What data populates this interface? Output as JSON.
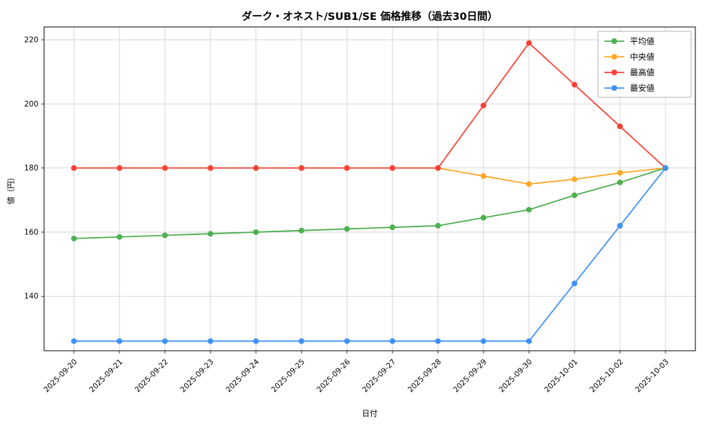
{
  "chart_data": {
    "type": "line",
    "title": "ダーク・オネスト/SUB1/SE 価格推移（過去30日間）",
    "xlabel": "日付",
    "ylabel": "値（円）",
    "x": [
      "2025-09-20",
      "2025-09-21",
      "2025-09-22",
      "2025-09-23",
      "2025-09-24",
      "2025-09-25",
      "2025-09-26",
      "2025-09-27",
      "2025-09-28",
      "2025-09-29",
      "2025-09-30",
      "2025-10-01",
      "2025-10-02",
      "2025-10-03"
    ],
    "ylim": [
      123,
      224
    ],
    "yticks": [
      140,
      160,
      180,
      200,
      220
    ],
    "grid": true,
    "legend_position": "upper right",
    "series": [
      {
        "name": "平均値",
        "color": "#4caf50",
        "values": [
          158,
          158.5,
          159,
          159.5,
          160,
          160.5,
          161,
          161.5,
          162,
          164.5,
          167,
          171.5,
          175.5,
          180
        ]
      },
      {
        "name": "中央値",
        "color": "#ffa726",
        "values": [
          180,
          180,
          180,
          180,
          180,
          180,
          180,
          180,
          180,
          177.5,
          175,
          176.5,
          178.5,
          180
        ]
      },
      {
        "name": "最高値",
        "color": "#f44336",
        "values": [
          180,
          180,
          180,
          180,
          180,
          180,
          180,
          180,
          180,
          199.5,
          219,
          206,
          193,
          180
        ]
      },
      {
        "name": "最安値",
        "color": "#3f92f5",
        "values": [
          126,
          126,
          126,
          126,
          126,
          126,
          126,
          126,
          126,
          126,
          126,
          144,
          162,
          180
        ]
      }
    ]
  }
}
